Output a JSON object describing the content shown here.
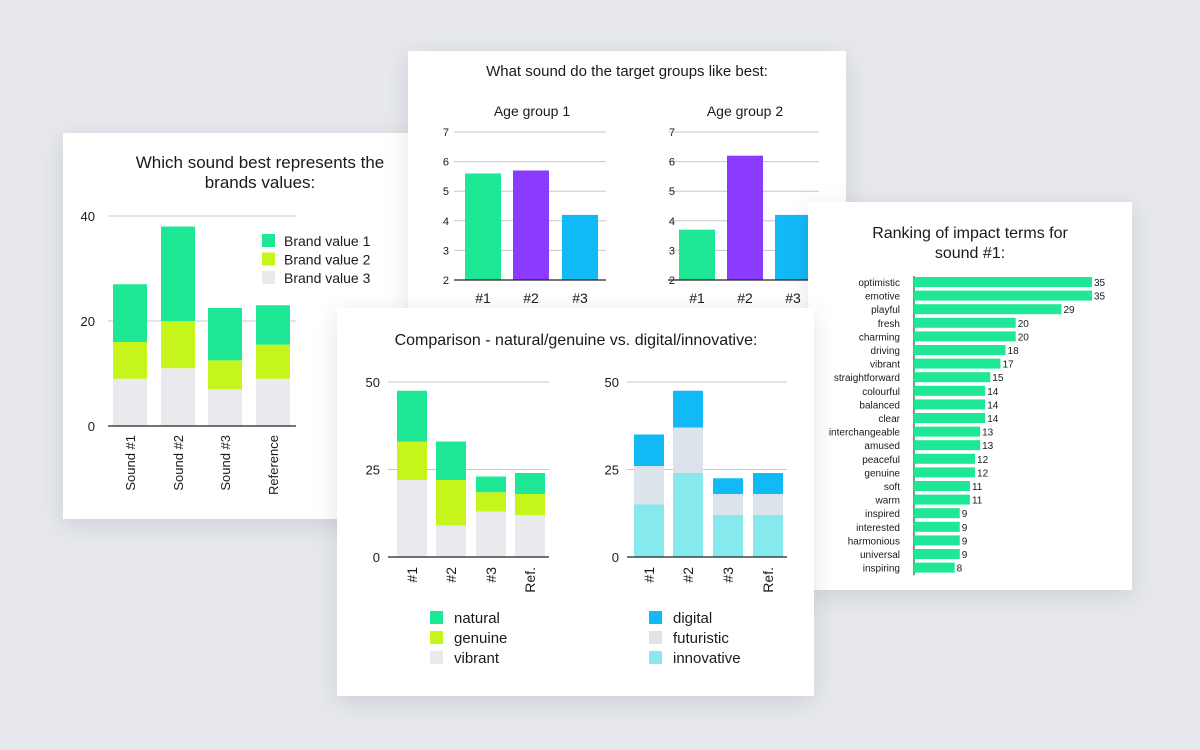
{
  "colors": {
    "green": "#1ee896",
    "lime": "#c6f51c",
    "light": "#eaeaee",
    "purple": "#8a3bff",
    "blue": "#12b9f7",
    "pale": "#dce3ea",
    "cyan": "#86e9ee",
    "grid": "#c8c8c8"
  },
  "chart_data": [
    {
      "type": "bar",
      "stacked": true,
      "title": "Which sound best represents the brands values:",
      "title_lines": [
        "Which sound best represents the",
        "brands values:"
      ],
      "categories": [
        "Sound #1",
        "Sound #2",
        "Sound #3",
        "Reference"
      ],
      "series": [
        {
          "name": "Brand value 3",
          "values": [
            9,
            11,
            7,
            9
          ]
        },
        {
          "name": "Brand value 2",
          "values": [
            7,
            9,
            5.5,
            6.5
          ]
        },
        {
          "name": "Brand value 1",
          "values": [
            11,
            18,
            10,
            7.5
          ]
        }
      ],
      "legend": [
        "Brand value 1",
        "Brand value 2",
        "Brand value 3"
      ],
      "yticks": [
        0,
        20,
        40
      ],
      "ylim": [
        0,
        40
      ]
    },
    {
      "type": "bar",
      "title": "What sound do the target groups like best:",
      "panels": [
        {
          "subtitle": "Age group 1",
          "categories": [
            "#1",
            "#2",
            "#3"
          ],
          "values": [
            5.6,
            5.7,
            4.2
          ],
          "yticks": [
            2,
            3,
            4,
            5,
            6,
            7
          ],
          "ylim": [
            2,
            7
          ]
        },
        {
          "subtitle": "Age group 2",
          "categories": [
            "#1",
            "#2",
            "#3"
          ],
          "values": [
            3.7,
            6.2,
            4.2
          ],
          "yticks": [
            2,
            3,
            4,
            5,
            6,
            7
          ],
          "ylim": [
            2,
            7
          ]
        }
      ]
    },
    {
      "type": "bar",
      "stacked": true,
      "title": "Comparison - natural/genuine vs. digital/innovative:",
      "panels": [
        {
          "categories": [
            "#1",
            "#2",
            "#3",
            "Ref."
          ],
          "series": [
            {
              "name": "vibrant",
              "values": [
                22,
                9,
                13,
                12
              ]
            },
            {
              "name": "genuine",
              "values": [
                11,
                13,
                5.5,
                6
              ]
            },
            {
              "name": "natural",
              "values": [
                14.5,
                11,
                4.5,
                6
              ]
            }
          ],
          "legend": [
            "natural",
            "genuine",
            "vibrant"
          ],
          "yticks": [
            0,
            25,
            50
          ],
          "ylim": [
            0,
            50
          ]
        },
        {
          "categories": [
            "#1",
            "#2",
            "#3",
            "Ref."
          ],
          "series": [
            {
              "name": "innovative",
              "values": [
                15,
                24,
                12,
                12
              ]
            },
            {
              "name": "futuristic",
              "values": [
                11,
                13,
                6,
                6
              ]
            },
            {
              "name": "digital",
              "values": [
                9,
                10.5,
                4.5,
                6
              ]
            }
          ],
          "legend": [
            "digital",
            "futuristic",
            "innovative"
          ],
          "yticks": [
            0,
            25,
            50
          ],
          "ylim": [
            0,
            50
          ]
        }
      ]
    },
    {
      "type": "bar",
      "orientation": "horizontal",
      "title": "Ranking of impact terms for sound #1:",
      "title_lines": [
        "Ranking of impact terms for",
        "sound #1:"
      ],
      "categories": [
        "optimistic",
        "emotive",
        "playful",
        "fresh",
        "charming",
        "driving",
        "vibrant",
        "straightforward",
        "colourful",
        "balanced",
        "clear",
        "interchangeable",
        "amused",
        "peaceful",
        "genuine",
        "soft",
        "warm",
        "inspired",
        "interested",
        "harmonious",
        "universal",
        "inspiring"
      ],
      "values": [
        35,
        35,
        29,
        20,
        20,
        18,
        17,
        15,
        14,
        14,
        14,
        13,
        13,
        12,
        12,
        11,
        11,
        9,
        9,
        9,
        9,
        8
      ],
      "xlim": [
        0,
        35
      ]
    }
  ]
}
